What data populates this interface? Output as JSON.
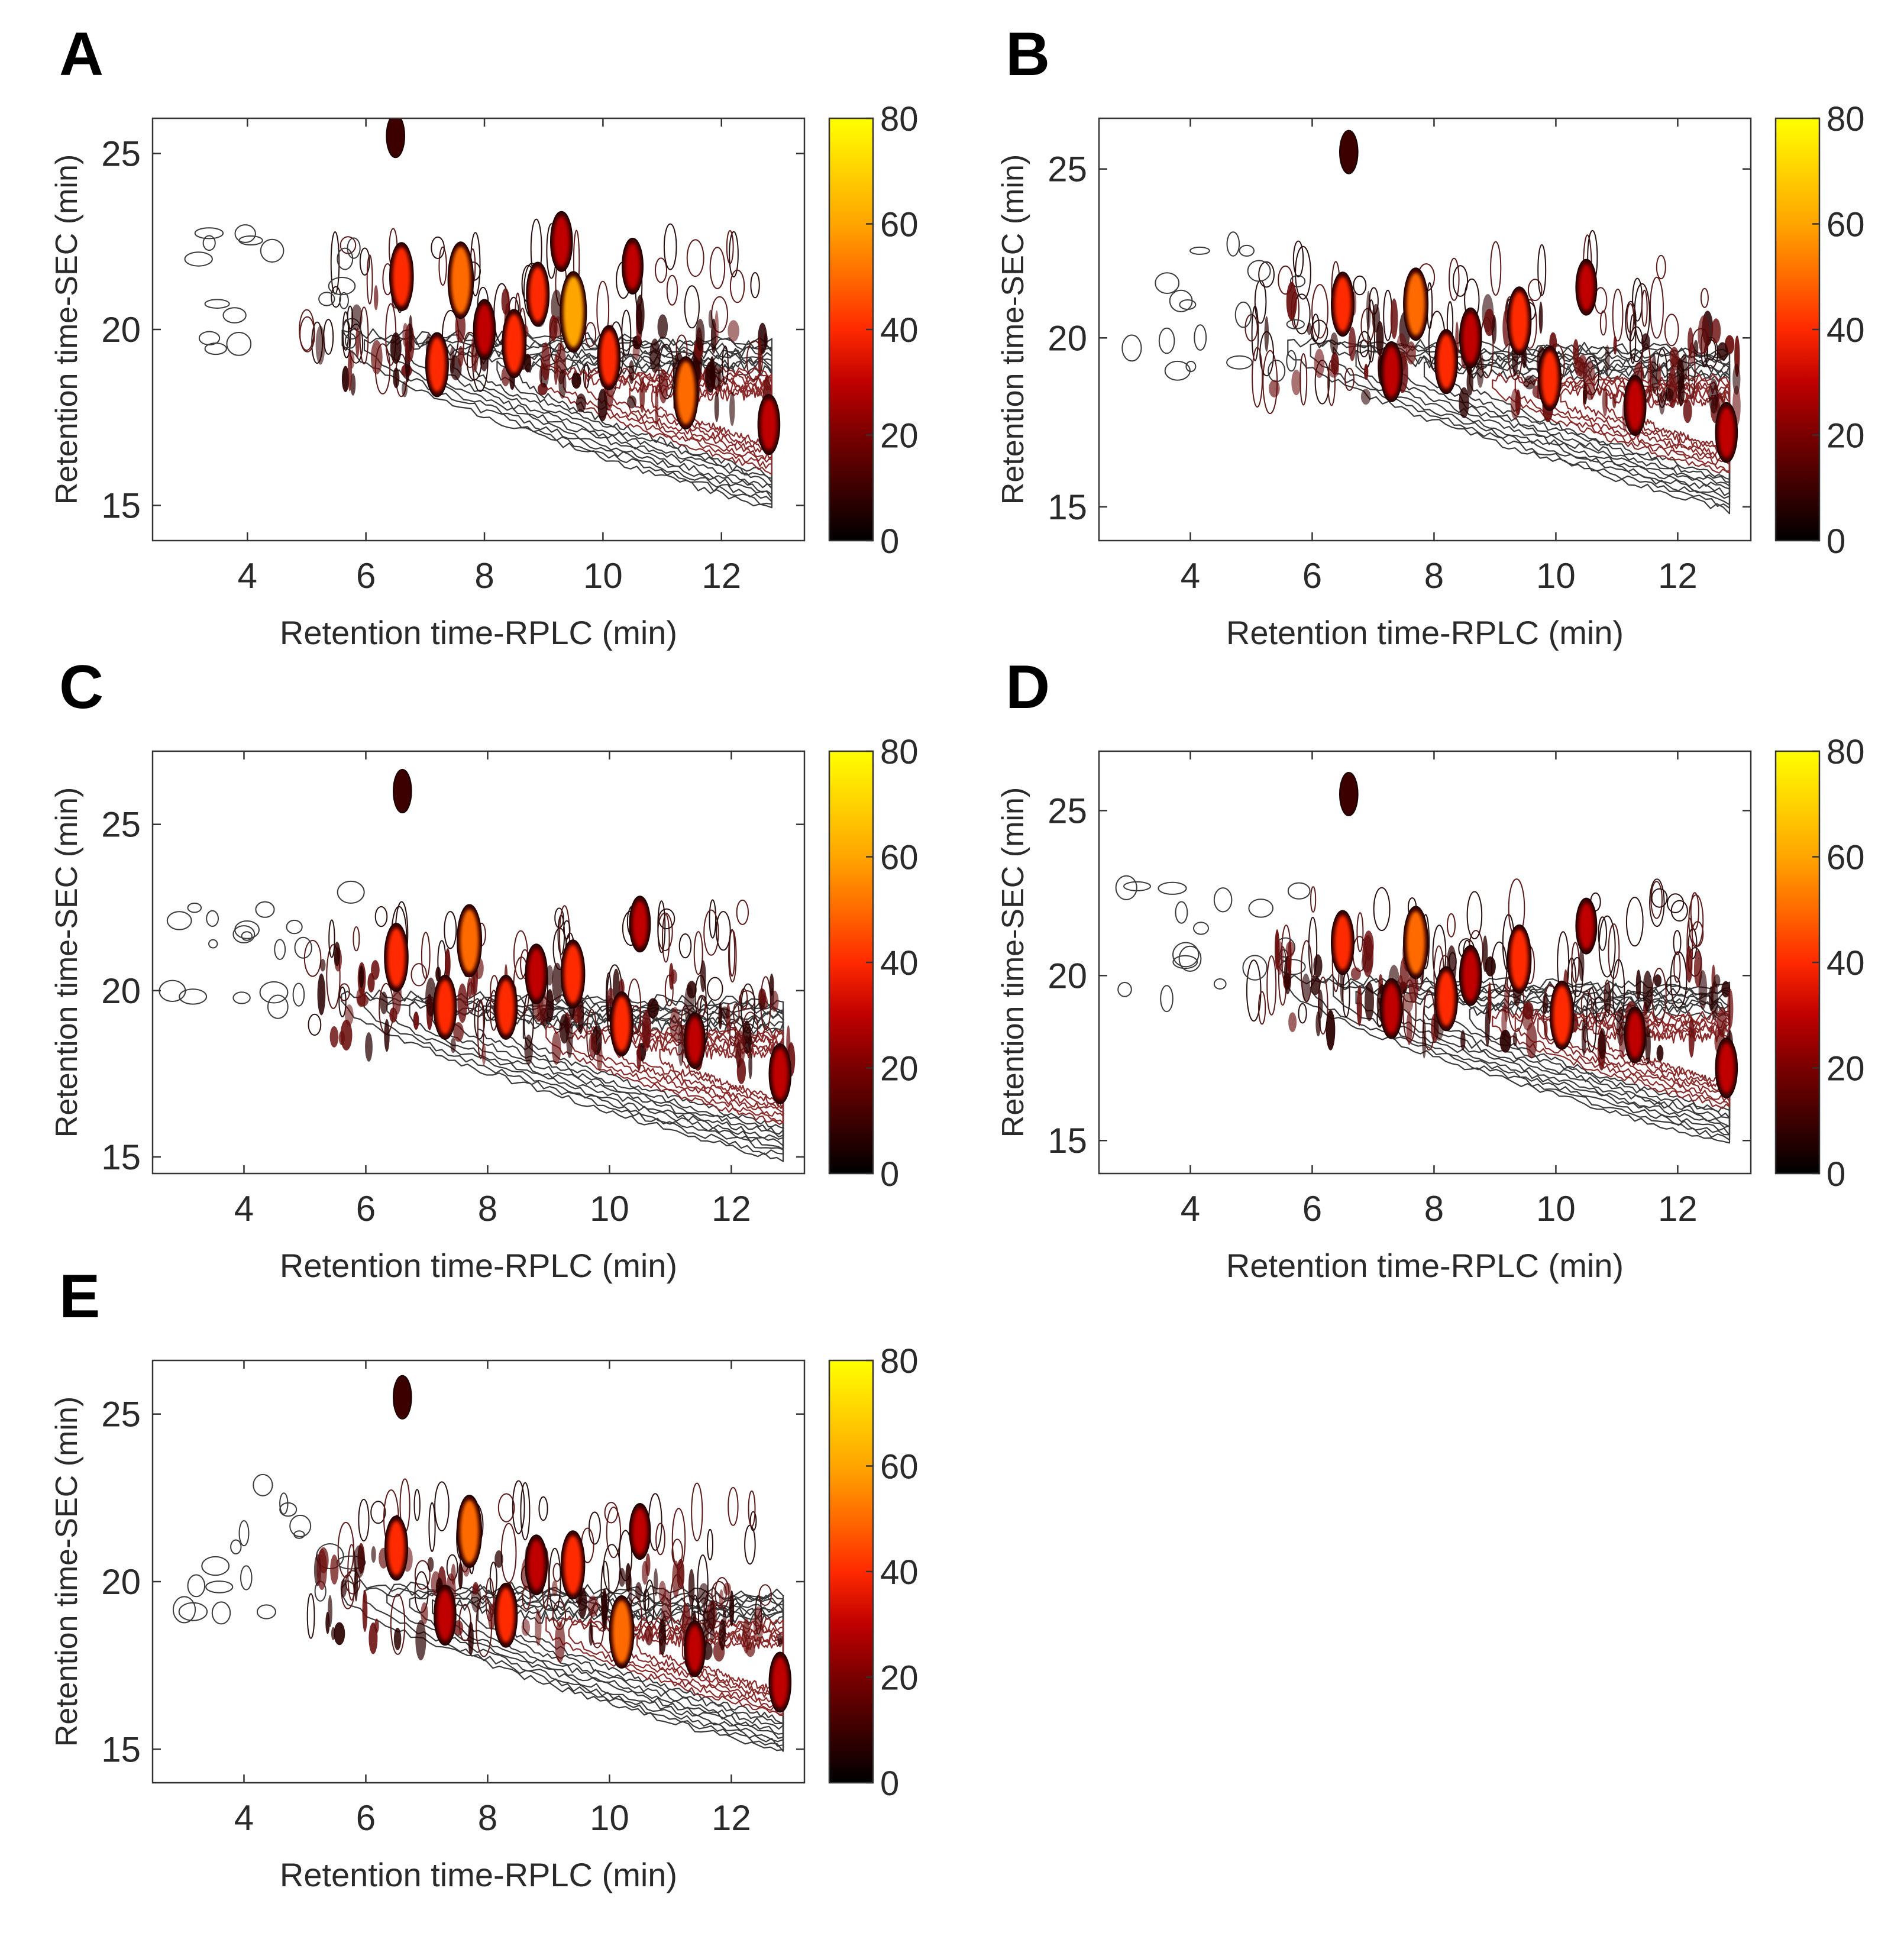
{
  "figure": {
    "colorbar": {
      "ticks": [
        "0",
        "20",
        "40",
        "60",
        "80"
      ],
      "stops": [
        "#000000",
        "#3d0000",
        "#7a0000",
        "#c00000",
        "#ff2a00",
        "#ff6a00",
        "#ffa500",
        "#ffd200",
        "#ffff00"
      ]
    }
  },
  "chart_data": [
    {
      "panel": "A",
      "type": "heatmap",
      "xlabel": "Retention time-RPLC (min)",
      "ylabel": "Retention time-SEC (min)",
      "xticks": [
        "4",
        "6",
        "8",
        "10",
        "12"
      ],
      "yticks": [
        "15",
        "20",
        "25"
      ],
      "xlim": [
        2.4,
        13.4
      ],
      "ylim": [
        14,
        26
      ],
      "colorbar_range": [
        0,
        80
      ],
      "peaks": [
        {
          "x": 6.6,
          "y": 21.5,
          "v": 45
        },
        {
          "x": 7.2,
          "y": 19.0,
          "v": 40
        },
        {
          "x": 7.6,
          "y": 21.4,
          "v": 55
        },
        {
          "x": 8.0,
          "y": 20.0,
          "v": 35
        },
        {
          "x": 8.5,
          "y": 19.6,
          "v": 45
        },
        {
          "x": 8.9,
          "y": 21.0,
          "v": 40
        },
        {
          "x": 9.3,
          "y": 22.5,
          "v": 35
        },
        {
          "x": 9.5,
          "y": 20.5,
          "v": 60
        },
        {
          "x": 10.1,
          "y": 19.2,
          "v": 40
        },
        {
          "x": 10.5,
          "y": 21.8,
          "v": 30
        },
        {
          "x": 11.4,
          "y": 18.2,
          "v": 50
        },
        {
          "x": 12.8,
          "y": 17.3,
          "v": 35
        },
        {
          "x": 6.5,
          "y": 25.5,
          "v": 15
        }
      ]
    },
    {
      "panel": "B",
      "type": "heatmap",
      "xlabel": "Retention time-RPLC (min)",
      "ylabel": "Retention time-SEC (min)",
      "xticks": [
        "4",
        "6",
        "8",
        "10",
        "12"
      ],
      "yticks": [
        "15",
        "20",
        "25"
      ],
      "xlim": [
        2.5,
        13.2
      ],
      "ylim": [
        14,
        26.5
      ],
      "colorbar_range": [
        0,
        80
      ],
      "peaks": [
        {
          "x": 6.5,
          "y": 21.0,
          "v": 40
        },
        {
          "x": 7.3,
          "y": 19.0,
          "v": 35
        },
        {
          "x": 7.7,
          "y": 21.0,
          "v": 50
        },
        {
          "x": 8.2,
          "y": 19.3,
          "v": 40
        },
        {
          "x": 8.6,
          "y": 20.0,
          "v": 35
        },
        {
          "x": 9.4,
          "y": 20.5,
          "v": 45
        },
        {
          "x": 9.9,
          "y": 18.8,
          "v": 40
        },
        {
          "x": 10.5,
          "y": 21.5,
          "v": 30
        },
        {
          "x": 11.3,
          "y": 18.0,
          "v": 35
        },
        {
          "x": 12.8,
          "y": 17.2,
          "v": 35
        },
        {
          "x": 6.6,
          "y": 25.5,
          "v": 15
        }
      ]
    },
    {
      "panel": "C",
      "type": "heatmap",
      "xlabel": "Retention time-RPLC (min)",
      "ylabel": "Retention time-SEC (min)",
      "xticks": [
        "4",
        "6",
        "8",
        "10",
        "12"
      ],
      "yticks": [
        "15",
        "20",
        "25"
      ],
      "xlim": [
        2.5,
        13.2
      ],
      "ylim": [
        14.5,
        27.2
      ],
      "colorbar_range": [
        0,
        80
      ],
      "peaks": [
        {
          "x": 6.5,
          "y": 21.0,
          "v": 45
        },
        {
          "x": 7.3,
          "y": 19.5,
          "v": 40
        },
        {
          "x": 7.7,
          "y": 21.5,
          "v": 50
        },
        {
          "x": 8.3,
          "y": 19.5,
          "v": 40
        },
        {
          "x": 8.8,
          "y": 20.5,
          "v": 35
        },
        {
          "x": 9.4,
          "y": 20.5,
          "v": 45
        },
        {
          "x": 10.2,
          "y": 19.0,
          "v": 40
        },
        {
          "x": 10.5,
          "y": 22.0,
          "v": 30
        },
        {
          "x": 11.4,
          "y": 18.5,
          "v": 30
        },
        {
          "x": 12.8,
          "y": 17.5,
          "v": 35
        },
        {
          "x": 6.6,
          "y": 26.0,
          "v": 15
        }
      ]
    },
    {
      "panel": "D",
      "type": "heatmap",
      "xlabel": "Retention time-RPLC (min)",
      "ylabel": "Retention time-SEC (min)",
      "xticks": [
        "4",
        "6",
        "8",
        "10",
        "12"
      ],
      "yticks": [
        "15",
        "20",
        "25"
      ],
      "xlim": [
        2.5,
        13.2
      ],
      "ylim": [
        14,
        26.8
      ],
      "colorbar_range": [
        0,
        80
      ],
      "peaks": [
        {
          "x": 6.5,
          "y": 21.0,
          "v": 40
        },
        {
          "x": 7.3,
          "y": 19.0,
          "v": 35
        },
        {
          "x": 7.7,
          "y": 21.0,
          "v": 50
        },
        {
          "x": 8.2,
          "y": 19.3,
          "v": 40
        },
        {
          "x": 8.6,
          "y": 20.0,
          "v": 35
        },
        {
          "x": 9.4,
          "y": 20.5,
          "v": 45
        },
        {
          "x": 10.1,
          "y": 18.8,
          "v": 45
        },
        {
          "x": 10.5,
          "y": 21.5,
          "v": 30
        },
        {
          "x": 11.3,
          "y": 18.2,
          "v": 30
        },
        {
          "x": 12.8,
          "y": 17.2,
          "v": 35
        },
        {
          "x": 6.6,
          "y": 25.5,
          "v": 15
        }
      ]
    },
    {
      "panel": "E",
      "type": "heatmap",
      "xlabel": "Retention time-RPLC (min)",
      "ylabel": "Retention time-SEC (min)",
      "xticks": [
        "4",
        "6",
        "8",
        "10",
        "12"
      ],
      "yticks": [
        "15",
        "20",
        "25"
      ],
      "xlim": [
        2.5,
        13.2
      ],
      "ylim": [
        14,
        26.6
      ],
      "colorbar_range": [
        0,
        80
      ],
      "peaks": [
        {
          "x": 6.5,
          "y": 21.0,
          "v": 40
        },
        {
          "x": 7.3,
          "y": 19.0,
          "v": 35
        },
        {
          "x": 7.7,
          "y": 21.5,
          "v": 50
        },
        {
          "x": 8.3,
          "y": 19.0,
          "v": 40
        },
        {
          "x": 8.8,
          "y": 20.5,
          "v": 35
        },
        {
          "x": 9.4,
          "y": 20.5,
          "v": 45
        },
        {
          "x": 10.2,
          "y": 18.5,
          "v": 50
        },
        {
          "x": 10.5,
          "y": 21.5,
          "v": 30
        },
        {
          "x": 11.4,
          "y": 18.0,
          "v": 30
        },
        {
          "x": 12.8,
          "y": 17.0,
          "v": 35
        },
        {
          "x": 6.6,
          "y": 25.5,
          "v": 15
        }
      ]
    }
  ]
}
